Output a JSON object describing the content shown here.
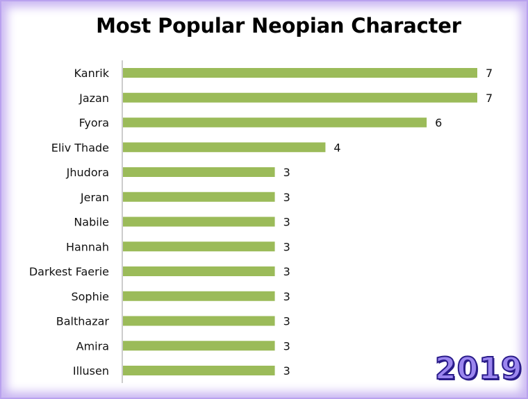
{
  "chart_data": {
    "type": "bar",
    "orientation": "horizontal",
    "title": "Most Popular Neopian Character",
    "categories": [
      "Kanrik",
      "Jazan",
      "Fyora",
      "Eliv Thade",
      "Jhudora",
      "Jeran",
      "Nabile",
      "Hannah",
      "Darkest Faerie",
      "Sophie",
      "Balthazar",
      "Amira",
      "Illusen"
    ],
    "values": [
      7,
      7,
      6,
      4,
      3,
      3,
      3,
      3,
      3,
      3,
      3,
      3,
      3
    ],
    "xlabel": "",
    "ylabel": "",
    "xlim": [
      0,
      7
    ],
    "grid": false,
    "data_labels": true,
    "bar_color": "#9bbb59"
  },
  "year_badge": "2019",
  "colors": {
    "frame_glow": "#c9b6f2",
    "badge_fill": "#9b86ef",
    "badge_outline": "#2a1c8a"
  }
}
